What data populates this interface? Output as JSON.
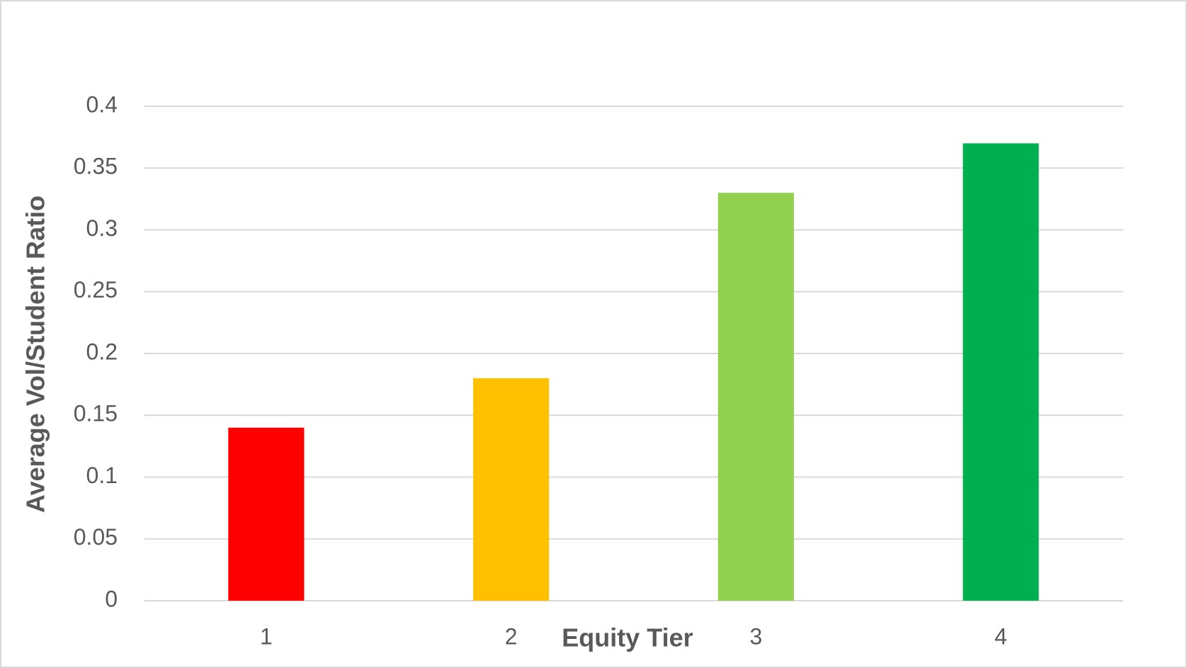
{
  "chart_data": {
    "type": "bar",
    "x_label": "Equity Tier",
    "y_label": "Average Vol/Student Ratio",
    "categories": [
      "1",
      "2",
      "3",
      "4"
    ],
    "values": [
      0.14,
      0.18,
      0.33,
      0.37
    ],
    "colors": [
      "#ff0000",
      "#ffc000",
      "#92d050",
      "#00b050"
    ],
    "ylim": [
      0,
      0.4
    ],
    "yticks": [
      0,
      0.05,
      0.1,
      0.15,
      0.2,
      0.25,
      0.3,
      0.35,
      0.4
    ],
    "grid": true
  }
}
